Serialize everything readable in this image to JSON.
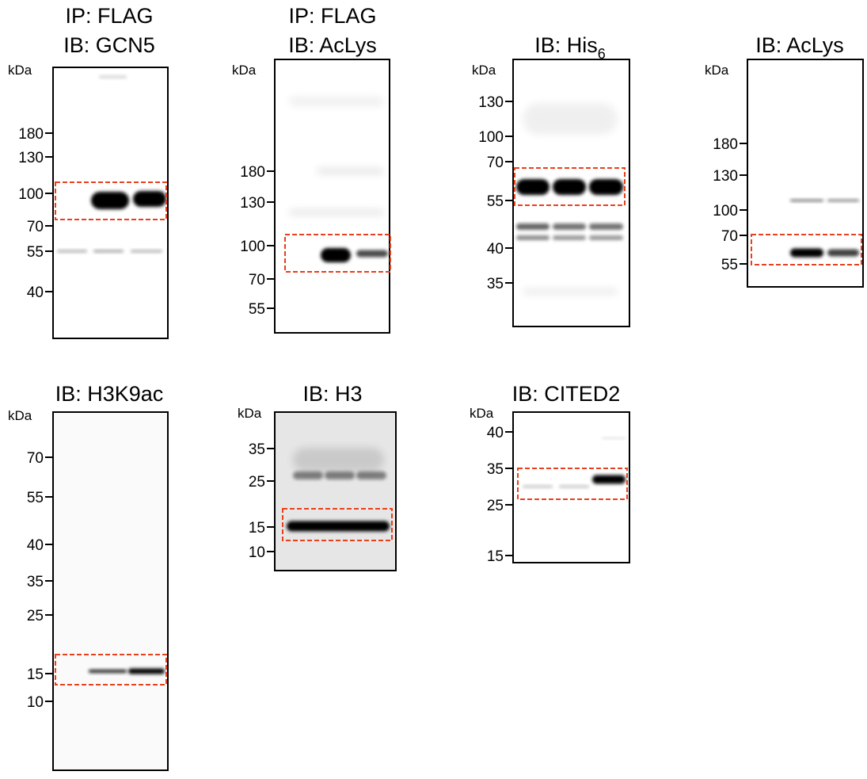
{
  "panels": [
    {
      "title": [
        "IP: FLAG",
        "IB: GCN5"
      ],
      "kda_label": "kDa",
      "markers": [
        "180",
        "130",
        "100",
        "70",
        "55",
        "40"
      ]
    },
    {
      "title": [
        "IP: FLAG",
        "IB: AcLys"
      ],
      "kda_label": "kDa",
      "markers": [
        "180",
        "130",
        "100",
        "70",
        "55"
      ]
    },
    {
      "title": [
        "IB: His"
      ],
      "title_subscript": "6",
      "kda_label": "kDa",
      "markers": [
        "130",
        "100",
        "70",
        "55",
        "40",
        "35"
      ]
    },
    {
      "title": [
        "IB: AcLys"
      ],
      "kda_label": "kDa",
      "markers": [
        "180",
        "130",
        "100",
        "70",
        "55"
      ]
    },
    {
      "title": [
        "IB: H3K9ac"
      ],
      "kda_label": "kDa",
      "markers": [
        "70",
        "55",
        "40",
        "35",
        "25",
        "15",
        "10"
      ]
    },
    {
      "title": [
        "IB: H3"
      ],
      "kda_label": "kDa",
      "markers": [
        "35",
        "25",
        "15",
        "10"
      ]
    },
    {
      "title": [
        "IB: CITED2"
      ],
      "kda_label": "kDa",
      "markers": [
        "40",
        "35",
        "25",
        "15"
      ]
    }
  ]
}
